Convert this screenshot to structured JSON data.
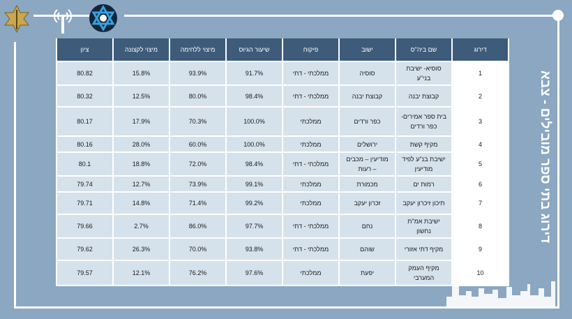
{
  "title": "דירוג בתי ספר מובילים - צבא",
  "colors": {
    "background": "#8ba7c2",
    "header": "#3e5b7a",
    "cell": "#d5e1eb"
  },
  "icons": [
    "idf-emblem-icon",
    "radio-antenna-icon",
    "star-of-david-emblem-icon",
    "city-skyline-icon"
  ],
  "table": {
    "headers": [
      "דירוג",
      "שם ביה\"ס",
      "ישוב",
      "פיקוח",
      "שיעור הגיוס",
      "מיצוי ללחימה",
      "מיצוי לקצונה",
      "ציון"
    ],
    "rows": [
      [
        "1",
        "סוסיא- ישיבת בני\"ע",
        "סוסיה",
        "ממלכתי - דתי",
        "91.7%",
        "93.9%",
        "15.8%",
        "80.82"
      ],
      [
        "2",
        "קבוצת יבנה",
        "קבוצת יבנה",
        "ממלכתי - דתי",
        "98.4%",
        "80.0%",
        "12.5%",
        "80.32"
      ],
      [
        "3",
        "בית ספר אמירים- כפר ורדים",
        "כפר ורדים",
        "ממלכתי",
        "100.0%",
        "70.3%",
        "17.9%",
        "80.17"
      ],
      [
        "4",
        "מקיף קשת",
        "ירושלים",
        "ממלכתי",
        "100.0%",
        "60.0%",
        "28.0%",
        "80.16"
      ],
      [
        "5",
        "ישיבת בנ\"ע לפיד מודיעין",
        "מודיעין – מכבים – רעות",
        "ממלכתי - דתי",
        "98.4%",
        "72.0%",
        "18.8%",
        "80.1"
      ],
      [
        "6",
        "רמות ים",
        "מכמורת",
        "ממלכתי",
        "99.1%",
        "73.9%",
        "12.7%",
        "79.74"
      ],
      [
        "7",
        "תיכון זיכרון יעקב",
        "זכרון יעקב",
        "ממלכתי",
        "99.2%",
        "71.4%",
        "14.8%",
        "79.71"
      ],
      [
        "8",
        "ישיבת אמ\"ת נחשון",
        "נחם",
        "ממלכתי - דתי",
        "97.7%",
        "86.0%",
        "2.7%",
        "79.66"
      ],
      [
        "9",
        "מקיף דתי אזורי",
        "שוהם",
        "ממלכתי - דתי",
        "93.8%",
        "70.0%",
        "26.3%",
        "79.62"
      ],
      [
        "10",
        "מקיף העמק המערבי",
        "יפעת",
        "ממלכתי",
        "97.6%",
        "76.2%",
        "12.1%",
        "79.57"
      ]
    ]
  }
}
